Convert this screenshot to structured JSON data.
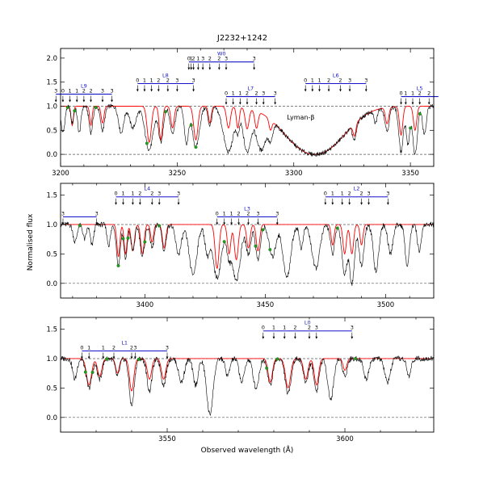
{
  "chart_data": {
    "type": "line",
    "title": "J2232+1242",
    "xlabel": "Observed wavelength (Å)",
    "ylabel": "Normalised flux",
    "panels": [
      {
        "xlim": [
          3200,
          3360
        ],
        "ylim": [
          -0.25,
          2.2
        ],
        "xticks": [
          3200,
          3250,
          3300,
          3350
        ],
        "yticks": [
          "0.0",
          "0.5",
          "1.0",
          "1.5",
          "2.0"
        ],
        "continuum": 1.0,
        "zero": 0.0,
        "annotations": [
          {
            "text": "Lyman-β",
            "x": 3303,
            "y": 0.72
          }
        ],
        "bands": [
          {
            "label": "L9",
            "x0": 3198,
            "x1": 3222,
            "y": 1.25,
            "j": [
              "3",
              "0",
              "1",
              "1",
              "2",
              "2",
              "3",
              "3"
            ],
            "jx": [
              3198,
              3201,
              3204,
              3207,
              3210,
              3213,
              3218,
              3222
            ]
          },
          {
            "label": "L8",
            "x0": 3233,
            "x1": 3257,
            "y": 1.47,
            "j": [
              "0",
              "1",
              "1",
              "2",
              "2",
              "3",
              "3"
            ],
            "jx": [
              3233,
              3236,
              3239,
              3242,
              3246,
              3250,
              3257
            ]
          },
          {
            "label": "W0",
            "x0": 3255,
            "x1": 3283,
            "y": 1.92,
            "j": [
              "0",
              "1",
              "2",
              "1",
              "3",
              "2",
              "2",
              "3",
              "3"
            ],
            "jx": [
              3255,
              3256,
              3257,
              3259,
              3261,
              3264,
              3268,
              3271,
              3283
            ]
          },
          {
            "label": "L7",
            "x0": 3271,
            "x1": 3292,
            "y": 1.2,
            "j": [
              "0",
              "1",
              "1",
              "2",
              "2",
              "3",
              "3"
            ],
            "jx": [
              3271,
              3274,
              3277,
              3280,
              3284,
              3287,
              3292
            ]
          },
          {
            "label": "L6",
            "x0": 3305,
            "x1": 3331,
            "y": 1.47,
            "j": [
              "0",
              "1",
              "1",
              "2",
              "2",
              "3",
              "3"
            ],
            "jx": [
              3305,
              3308,
              3311,
              3315,
              3320,
              3324,
              3331
            ]
          },
          {
            "label": "L5",
            "x0": 3346,
            "x1": 3362,
            "y": 1.2,
            "j": [
              "0",
              "1",
              "1",
              "2",
              "2"
            ],
            "jx": [
              3346,
              3348,
              3351,
              3354,
              3358
            ]
          }
        ],
        "flux_dips": [
          [
            3201,
            0.55,
            0.8
          ],
          [
            3205,
            0.35,
            0.6
          ],
          [
            3208,
            0.55,
            0.7
          ],
          [
            3213,
            0.55,
            0.8
          ],
          [
            3218,
            0.5,
            0.9
          ],
          [
            3226,
            0.55,
            1.1
          ],
          [
            3231,
            0.45,
            1.4
          ],
          [
            3238,
            0.9,
            1.8
          ],
          [
            3243,
            0.75,
            1.0
          ],
          [
            3248,
            0.55,
            1.1
          ],
          [
            3254,
            0.8,
            0.9
          ],
          [
            3258,
            0.85,
            1.5
          ],
          [
            3264,
            0.4,
            0.8
          ],
          [
            3272,
            0.95,
            2.2
          ],
          [
            3276,
            0.5,
            0.7
          ],
          [
            3280,
            0.95,
            1.7
          ],
          [
            3286,
            0.9,
            2.2
          ],
          [
            3290,
            0.6,
            1.0
          ],
          [
            3326,
            0.55,
            0.8
          ],
          [
            3335,
            0.3,
            0.7
          ],
          [
            3340,
            0.5,
            0.9
          ],
          [
            3346,
            0.95,
            1.0
          ],
          [
            3349,
            0.8,
            0.8
          ],
          [
            3352,
            1.0,
            1.0
          ],
          [
            3356,
            0.6,
            0.8
          ]
        ],
        "model_dips": [
          [
            3205,
            0.4,
            0.5
          ],
          [
            3213,
            0.4,
            0.5
          ],
          [
            3218,
            0.35,
            0.6
          ],
          [
            3238,
            0.75,
            0.9
          ],
          [
            3243,
            0.7,
            0.7
          ],
          [
            3248,
            0.45,
            0.7
          ],
          [
            3258,
            0.7,
            0.9
          ],
          [
            3264,
            0.35,
            0.6
          ],
          [
            3272,
            0.45,
            0.8
          ],
          [
            3276,
            0.45,
            0.6
          ],
          [
            3280,
            0.45,
            0.8
          ],
          [
            3284,
            0.4,
            0.7
          ],
          [
            3290,
            0.3,
            0.6
          ],
          [
            3326,
            0.4,
            0.6
          ],
          [
            3340,
            0.35,
            0.7
          ],
          [
            3346,
            0.6,
            0.7
          ],
          [
            3352,
            0.5,
            0.7
          ]
        ],
        "lyman_trough": {
          "center": 3309,
          "width": 9,
          "depth": 1.0
        },
        "points": [
          3203,
          3206,
          3215,
          3237,
          3245,
          3256,
          3258,
          3350,
          3354
        ]
      },
      {
        "xlim": [
          3365,
          3520
        ],
        "ylim": [
          -0.25,
          1.7
        ],
        "xticks": [
          3400,
          3450,
          3500
        ],
        "yticks": [
          "0.0",
          "0.5",
          "1.0",
          "1.5"
        ],
        "continuum": 1.0,
        "zero": 0.0,
        "annotations": [],
        "bands": [
          {
            "label": "",
            "x0": 3366,
            "x1": 3380,
            "y": 1.13,
            "j": [
              "3",
              "3"
            ],
            "jx": [
              3366,
              3380
            ]
          },
          {
            "label": "L4",
            "x0": 3388,
            "x1": 3414,
            "y": 1.47,
            "j": [
              "0",
              "1",
              "1",
              "2",
              "2",
              "3",
              "3"
            ],
            "jx": [
              3388,
              3391,
              3395,
              3398,
              3403,
              3406,
              3414
            ]
          },
          {
            "label": "L3",
            "x0": 3430,
            "x1": 3455,
            "y": 1.13,
            "j": [
              "0",
              "1",
              "1",
              "2",
              "2",
              "3",
              "3"
            ],
            "jx": [
              3430,
              3433,
              3436,
              3439,
              3443,
              3447,
              3455
            ]
          },
          {
            "label": "L2",
            "x0": 3475,
            "x1": 3501,
            "y": 1.47,
            "j": [
              "0",
              "1",
              "1",
              "2",
              "2",
              "3",
              "3"
            ],
            "jx": [
              3475,
              3478,
              3482,
              3485,
              3490,
              3493,
              3501
            ]
          }
        ],
        "flux_dips": [
          [
            3371,
            0.3,
            0.8
          ],
          [
            3375,
            0.25,
            0.7
          ],
          [
            3378,
            0.35,
            0.7
          ],
          [
            3385,
            0.35,
            0.7
          ],
          [
            3389,
            0.7,
            0.8
          ],
          [
            3392,
            0.6,
            0.7
          ],
          [
            3395,
            0.45,
            0.8
          ],
          [
            3399,
            0.55,
            0.9
          ],
          [
            3403,
            0.4,
            0.8
          ],
          [
            3408,
            0.45,
            0.8
          ],
          [
            3414,
            0.5,
            1.2
          ],
          [
            3420,
            0.85,
            1.6
          ],
          [
            3426,
            0.5,
            1.0
          ],
          [
            3430,
            0.9,
            1.8
          ],
          [
            3435,
            0.55,
            1.0
          ],
          [
            3438,
            0.95,
            1.7
          ],
          [
            3443,
            0.5,
            1.0
          ],
          [
            3447,
            0.6,
            1.0
          ],
          [
            3453,
            0.55,
            1.4
          ],
          [
            3459,
            0.9,
            1.6
          ],
          [
            3465,
            0.4,
            0.8
          ],
          [
            3471,
            0.75,
            1.6
          ],
          [
            3478,
            0.5,
            0.9
          ],
          [
            3483,
            0.85,
            1.1
          ],
          [
            3486,
            1.0,
            1.1
          ],
          [
            3490,
            0.7,
            1.0
          ],
          [
            3496,
            0.8,
            1.1
          ],
          [
            3502,
            0.5,
            1.0
          ],
          [
            3509,
            0.7,
            0.9
          ],
          [
            3514,
            0.45,
            0.8
          ]
        ],
        "model_dips": [
          [
            3389,
            0.55,
            0.6
          ],
          [
            3392,
            0.5,
            0.6
          ],
          [
            3395,
            0.45,
            0.7
          ],
          [
            3399,
            0.5,
            0.7
          ],
          [
            3403,
            0.3,
            0.6
          ],
          [
            3408,
            0.4,
            0.7
          ],
          [
            3430,
            0.75,
            0.8
          ],
          [
            3435,
            0.5,
            0.7
          ],
          [
            3438,
            0.6,
            0.8
          ],
          [
            3443,
            0.4,
            0.7
          ],
          [
            3447,
            0.45,
            0.7
          ],
          [
            3478,
            0.35,
            0.6
          ],
          [
            3483,
            0.5,
            0.7
          ],
          [
            3486,
            0.5,
            0.7
          ],
          [
            3490,
            0.35,
            0.6
          ]
        ],
        "lyman_trough": null,
        "points": [
          3373,
          3389,
          3391,
          3393,
          3400,
          3406,
          3433,
          3446,
          3449,
          3452,
          3480
        ]
      },
      {
        "xlim": [
          3520,
          3625
        ],
        "ylim": [
          -0.25,
          1.7
        ],
        "xticks": [
          3550,
          3600
        ],
        "yticks": [
          "0.0",
          "0.5",
          "1.0",
          "1.5"
        ],
        "continuum": 1.0,
        "zero": 0.0,
        "annotations": [],
        "bands": [
          {
            "label": "L1",
            "x0": 3526,
            "x1": 3550,
            "y": 1.13,
            "j": [
              "0",
              "1",
              "1",
              "2",
              "2",
              "3",
              "3"
            ],
            "jx": [
              3526,
              3528,
              3532,
              3535,
              3540,
              3541,
              3550
            ]
          },
          {
            "label": "L0",
            "x0": 3577,
            "x1": 3602,
            "y": 1.47,
            "j": [
              "0",
              "1",
              "1",
              "2",
              "2",
              "3",
              "3"
            ],
            "jx": [
              3577,
              3580,
              3583,
              3586,
              3590,
              3592,
              3602
            ]
          }
        ],
        "flux_dips": [
          [
            3524,
            0.35,
            0.6
          ],
          [
            3528,
            0.5,
            0.8
          ],
          [
            3531,
            0.35,
            0.7
          ],
          [
            3536,
            0.3,
            0.6
          ],
          [
            3540,
            0.8,
            0.7
          ],
          [
            3545,
            0.55,
            0.7
          ],
          [
            3549,
            0.45,
            0.7
          ],
          [
            3554,
            0.4,
            0.8
          ],
          [
            3558,
            0.45,
            0.7
          ],
          [
            3562,
            0.95,
            0.9
          ],
          [
            3567,
            0.3,
            0.6
          ],
          [
            3571,
            0.4,
            0.7
          ],
          [
            3575,
            0.5,
            0.8
          ],
          [
            3579,
            0.45,
            0.7
          ],
          [
            3584,
            0.6,
            0.8
          ],
          [
            3589,
            0.4,
            0.7
          ],
          [
            3592,
            0.55,
            0.7
          ],
          [
            3596,
            0.7,
            0.8
          ],
          [
            3600,
            0.3,
            0.6
          ],
          [
            3606,
            0.35,
            0.7
          ],
          [
            3612,
            0.4,
            0.8
          ],
          [
            3618,
            0.3,
            0.6
          ]
        ],
        "model_dips": [
          [
            3528,
            0.45,
            0.7
          ],
          [
            3531,
            0.3,
            0.6
          ],
          [
            3536,
            0.25,
            0.5
          ],
          [
            3540,
            0.55,
            0.6
          ],
          [
            3545,
            0.35,
            0.6
          ],
          [
            3549,
            0.35,
            0.6
          ],
          [
            3579,
            0.4,
            0.6
          ],
          [
            3584,
            0.5,
            0.7
          ],
          [
            3589,
            0.35,
            0.6
          ],
          [
            3592,
            0.45,
            0.6
          ],
          [
            3600,
            0.2,
            0.5
          ]
        ],
        "lyman_trough": null,
        "points": [
          3527,
          3529,
          3533,
          3542,
          3578,
          3581,
          3603
        ]
      }
    ],
    "colors": {
      "data": "#000000",
      "model": "#ff0000",
      "points": "#1f9e1f",
      "band": "#1414c8",
      "reference": "#555555"
    }
  }
}
